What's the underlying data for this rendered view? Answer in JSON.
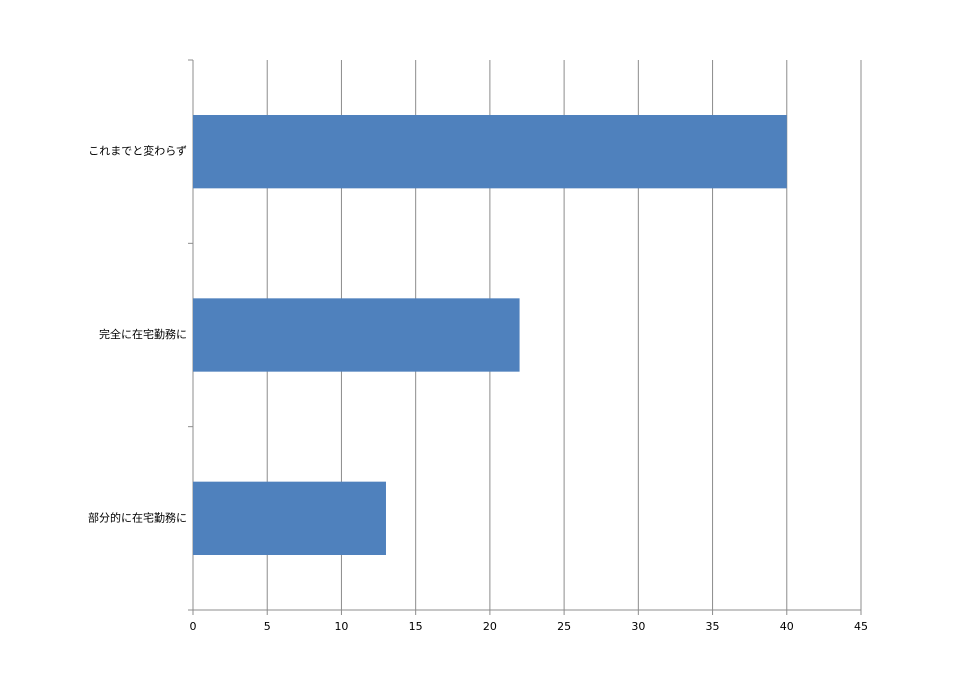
{
  "chart_data": {
    "type": "barh",
    "categories": [
      "これまでと変わらず",
      "完全に在宅勤務に",
      "部分的に在宅勤務に"
    ],
    "values": [
      40,
      22,
      13
    ],
    "color": "#4f81bd",
    "xlim": [
      0,
      45
    ],
    "xticks": [
      0,
      5,
      10,
      15,
      20,
      25,
      30,
      35,
      40,
      45
    ],
    "grid": true
  }
}
